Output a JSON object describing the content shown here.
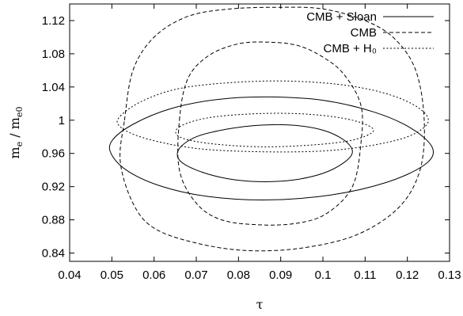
{
  "chart_data": {
    "type": "line",
    "title": "",
    "xlabel": "τ",
    "ylabel": "m_e / m_e0",
    "xlim": [
      0.04,
      0.13
    ],
    "ylim": [
      0.83,
      1.14
    ],
    "x_ticks": [
      0.04,
      0.05,
      0.06,
      0.07,
      0.08,
      0.09,
      0.1,
      0.11,
      0.12,
      0.13
    ],
    "x_tick_labels": [
      "0.04",
      "0.05",
      "0.06",
      "0.07",
      "0.08",
      "0.09",
      "0.1",
      "0.11",
      "0.12",
      "0.13"
    ],
    "y_ticks": [
      0.84,
      0.88,
      0.92,
      0.96,
      1.0,
      1.04,
      1.08,
      1.12
    ],
    "y_tick_labels": [
      "0.84",
      "0.88",
      "0.92",
      "0.96",
      "1",
      "1.04",
      "1.08",
      "1.12"
    ],
    "grid": false,
    "legend_position": "top-right",
    "series": [
      {
        "name": "CMB + Sloan",
        "dash": "solid",
        "contours": [
          {
            "level": "inner",
            "points": [
              [
                0.066,
                0.966
              ],
              [
                0.07,
                0.98
              ],
              [
                0.077,
                0.989
              ],
              [
                0.085,
                0.994
              ],
              [
                0.093,
                0.994
              ],
              [
                0.1,
                0.988
              ],
              [
                0.105,
                0.976
              ],
              [
                0.107,
                0.962
              ],
              [
                0.105,
                0.949
              ],
              [
                0.1,
                0.936
              ],
              [
                0.093,
                0.928
              ],
              [
                0.085,
                0.926
              ],
              [
                0.077,
                0.93
              ],
              [
                0.07,
                0.94
              ],
              [
                0.066,
                0.952
              ]
            ]
          },
          {
            "level": "outer",
            "points": [
              [
                0.05,
                0.975
              ],
              [
                0.055,
                0.995
              ],
              [
                0.064,
                1.014
              ],
              [
                0.075,
                1.025
              ],
              [
                0.087,
                1.028
              ],
              [
                0.1,
                1.024
              ],
              [
                0.112,
                1.01
              ],
              [
                0.121,
                0.99
              ],
              [
                0.126,
                0.966
              ],
              [
                0.124,
                0.946
              ],
              [
                0.115,
                0.925
              ],
              [
                0.102,
                0.91
              ],
              [
                0.087,
                0.904
              ],
              [
                0.073,
                0.908
              ],
              [
                0.062,
                0.92
              ],
              [
                0.054,
                0.938
              ],
              [
                0.05,
                0.958
              ]
            ]
          }
        ]
      },
      {
        "name": "CMB",
        "dash": "dashed",
        "contours": [
          {
            "level": "inner",
            "points": [
              [
                0.066,
                1.0
              ],
              [
                0.068,
                1.05
              ],
              [
                0.073,
                1.078
              ],
              [
                0.08,
                1.092
              ],
              [
                0.087,
                1.094
              ],
              [
                0.094,
                1.09
              ],
              [
                0.1,
                1.076
              ],
              [
                0.105,
                1.055
              ],
              [
                0.109,
                1.018
              ],
              [
                0.109,
                0.972
              ],
              [
                0.107,
                0.92
              ],
              [
                0.101,
                0.888
              ],
              [
                0.094,
                0.876
              ],
              [
                0.085,
                0.874
              ],
              [
                0.076,
                0.88
              ],
              [
                0.07,
                0.9
              ],
              [
                0.066,
                0.94
              ]
            ]
          },
          {
            "level": "outer",
            "points": [
              [
                0.053,
                1.0
              ],
              [
                0.055,
                1.06
              ],
              [
                0.06,
                1.1
              ],
              [
                0.068,
                1.125
              ],
              [
                0.078,
                1.134
              ],
              [
                0.09,
                1.136
              ],
              [
                0.1,
                1.134
              ],
              [
                0.11,
                1.12
              ],
              [
                0.117,
                1.098
              ],
              [
                0.122,
                1.06
              ],
              [
                0.124,
                1.0
              ],
              [
                0.123,
                0.94
              ],
              [
                0.118,
                0.895
              ],
              [
                0.108,
                0.862
              ],
              [
                0.095,
                0.846
              ],
              [
                0.082,
                0.843
              ],
              [
                0.07,
                0.852
              ],
              [
                0.06,
                0.87
              ],
              [
                0.055,
                0.9
              ],
              [
                0.052,
                0.95
              ]
            ]
          }
        ]
      },
      {
        "name": "CMB + H₀",
        "dash": "dotted",
        "contours": [
          {
            "level": "inner",
            "points": [
              [
                0.066,
                0.992
              ],
              [
                0.073,
                1.003
              ],
              [
                0.085,
                1.008
              ],
              [
                0.097,
                1.007
              ],
              [
                0.107,
                1.0
              ],
              [
                0.112,
                0.988
              ],
              [
                0.107,
                0.976
              ],
              [
                0.097,
                0.97
              ],
              [
                0.085,
                0.968
              ],
              [
                0.073,
                0.972
              ],
              [
                0.066,
                0.98
              ]
            ]
          },
          {
            "level": "outer",
            "points": [
              [
                0.052,
                1.005
              ],
              [
                0.058,
                1.025
              ],
              [
                0.068,
                1.04
              ],
              [
                0.085,
                1.047
              ],
              [
                0.1,
                1.045
              ],
              [
                0.112,
                1.036
              ],
              [
                0.121,
                1.02
              ],
              [
                0.125,
                1.0
              ],
              [
                0.121,
                0.982
              ],
              [
                0.112,
                0.97
              ],
              [
                0.1,
                0.963
              ],
              [
                0.085,
                0.962
              ],
              [
                0.07,
                0.966
              ],
              [
                0.058,
                0.978
              ],
              [
                0.052,
                0.992
              ]
            ]
          }
        ]
      }
    ]
  }
}
